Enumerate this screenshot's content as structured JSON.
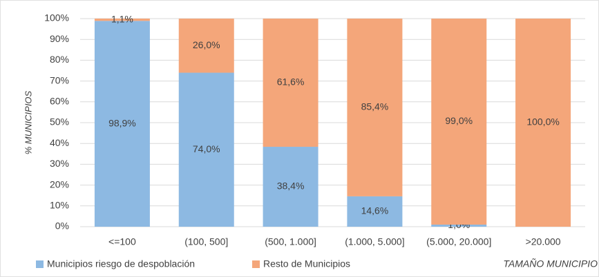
{
  "chart_data": {
    "type": "stacked_bar",
    "categories": [
      "<=100",
      "(100, 500]",
      "(500, 1.000]",
      "(1.000, 5.000]",
      "(5.000, 20.000]",
      ">20.000"
    ],
    "series": [
      {
        "name": "Municipios riesgo de despoblación",
        "color": "#8db9e2",
        "values": [
          98.9,
          74.0,
          38.4,
          14.6,
          1.0,
          0
        ],
        "value_labels": [
          "98,9%",
          "74,0%",
          "38,4%",
          "14,6%",
          "1,0%",
          null
        ]
      },
      {
        "name": "Resto de Municipios",
        "color": "#f4a67a",
        "values": [
          1.1,
          26.0,
          61.6,
          85.4,
          99.0,
          100.0
        ],
        "value_labels": [
          "1,1%",
          "26,0%",
          "61,6%",
          "85,4%",
          "99,0%",
          "100,0%"
        ]
      }
    ],
    "ylim": [
      0,
      100
    ],
    "yticks": [
      {
        "value": 0,
        "label": "0%"
      },
      {
        "value": 10,
        "label": "10%"
      },
      {
        "value": 20,
        "label": "20%"
      },
      {
        "value": 30,
        "label": "30%"
      },
      {
        "value": 40,
        "label": "40%"
      },
      {
        "value": 50,
        "label": "50%"
      },
      {
        "value": 60,
        "label": "60%"
      },
      {
        "value": 70,
        "label": "70%"
      },
      {
        "value": 80,
        "label": "80%"
      },
      {
        "value": 90,
        "label": "90%"
      },
      {
        "value": 100,
        "label": "100%"
      }
    ],
    "y_label": "% MUNICIPIOS",
    "x_label": "TAMAÑO MUNICIPIO",
    "grid": true,
    "legend": "bottom-left"
  }
}
